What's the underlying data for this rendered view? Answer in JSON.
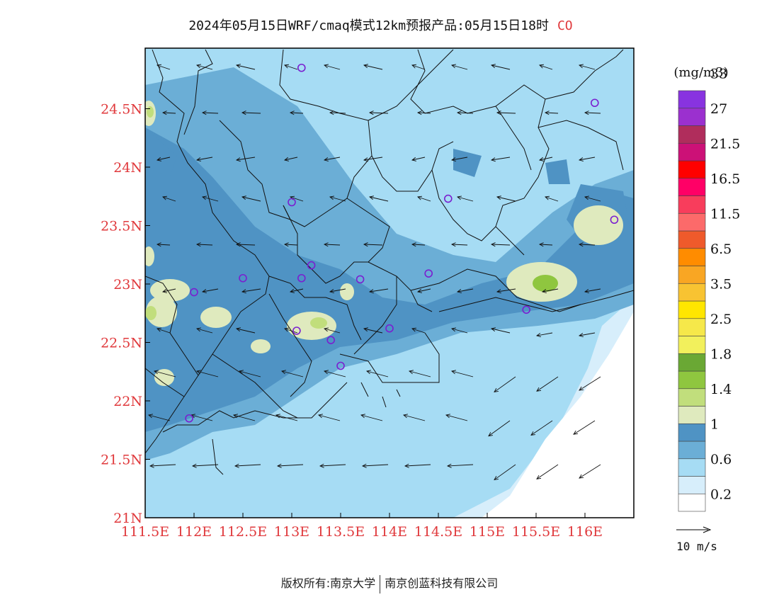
{
  "title": {
    "main": "2024年05月15日WRF/cmaq模式12km预报产品:05月15日18时",
    "species": "CO"
  },
  "map": {
    "lat_labels": [
      "24.5N",
      "24N",
      "23.5N",
      "23N",
      "22.5N",
      "22N",
      "21.5N",
      "21N"
    ],
    "lat_values": [
      24.5,
      24.0,
      23.5,
      23.0,
      22.5,
      22.0,
      21.5,
      21.0
    ],
    "lon_labels": [
      "111.5E",
      "112E",
      "112.5E",
      "113E",
      "113.5E",
      "114E",
      "114.5E",
      "115E",
      "115.5E",
      "116E"
    ],
    "lon_values": [
      111.5,
      112.0,
      112.5,
      113.0,
      113.5,
      114.0,
      114.5,
      115.0,
      115.5,
      116.0
    ],
    "lon_range": [
      111.5,
      116.5
    ],
    "lat_range": [
      21.0,
      25.0
    ],
    "tick_label_color": "#e0393c",
    "stations": [
      {
        "lon": 113.1,
        "lat": 24.85
      },
      {
        "lon": 116.1,
        "lat": 24.55
      },
      {
        "lon": 113.0,
        "lat": 23.7
      },
      {
        "lon": 114.6,
        "lat": 23.73
      },
      {
        "lon": 116.3,
        "lat": 23.55
      },
      {
        "lon": 112.5,
        "lat": 23.05
      },
      {
        "lon": 113.1,
        "lat": 23.05
      },
      {
        "lon": 113.2,
        "lat": 23.16
      },
      {
        "lon": 113.7,
        "lat": 23.04
      },
      {
        "lon": 114.4,
        "lat": 23.09
      },
      {
        "lon": 112.0,
        "lat": 22.93
      },
      {
        "lon": 115.4,
        "lat": 22.78
      },
      {
        "lon": 113.05,
        "lat": 22.6
      },
      {
        "lon": 113.4,
        "lat": 22.52
      },
      {
        "lon": 114.0,
        "lat": 22.62
      },
      {
        "lon": 113.5,
        "lat": 22.3
      },
      {
        "lon": 111.95,
        "lat": 21.85
      }
    ]
  },
  "colorbar": {
    "unit": "(mg/m3)",
    "colors": [
      "#ffffff",
      "#d7eefb",
      "#a6dcf4",
      "#6baed6",
      "#4f93c4",
      "#dfeabe",
      "#c1de7c",
      "#8fc63f",
      "#6aa834",
      "#f2f05c",
      "#f6e84a",
      "#ffe600",
      "#f8c332",
      "#f9a623",
      "#ff8c00",
      "#ef5a2b",
      "#fc6a6a",
      "#f83d5c",
      "#ff0066",
      "#ff0000",
      "#cc1177",
      "#b02d5c",
      "#9b30cf",
      "#8833e0"
    ],
    "labels": [
      "0.2",
      "0.6",
      "1",
      "1.4",
      "1.8",
      "2.5",
      "3.5",
      "6.5",
      "11.5",
      "16.5",
      "21.5",
      "27",
      "33"
    ],
    "wind_ref": "10 m/s"
  },
  "footer": {
    "left": "版权所有:南京大学",
    "right": "南京创蓝科技有限公司"
  }
}
